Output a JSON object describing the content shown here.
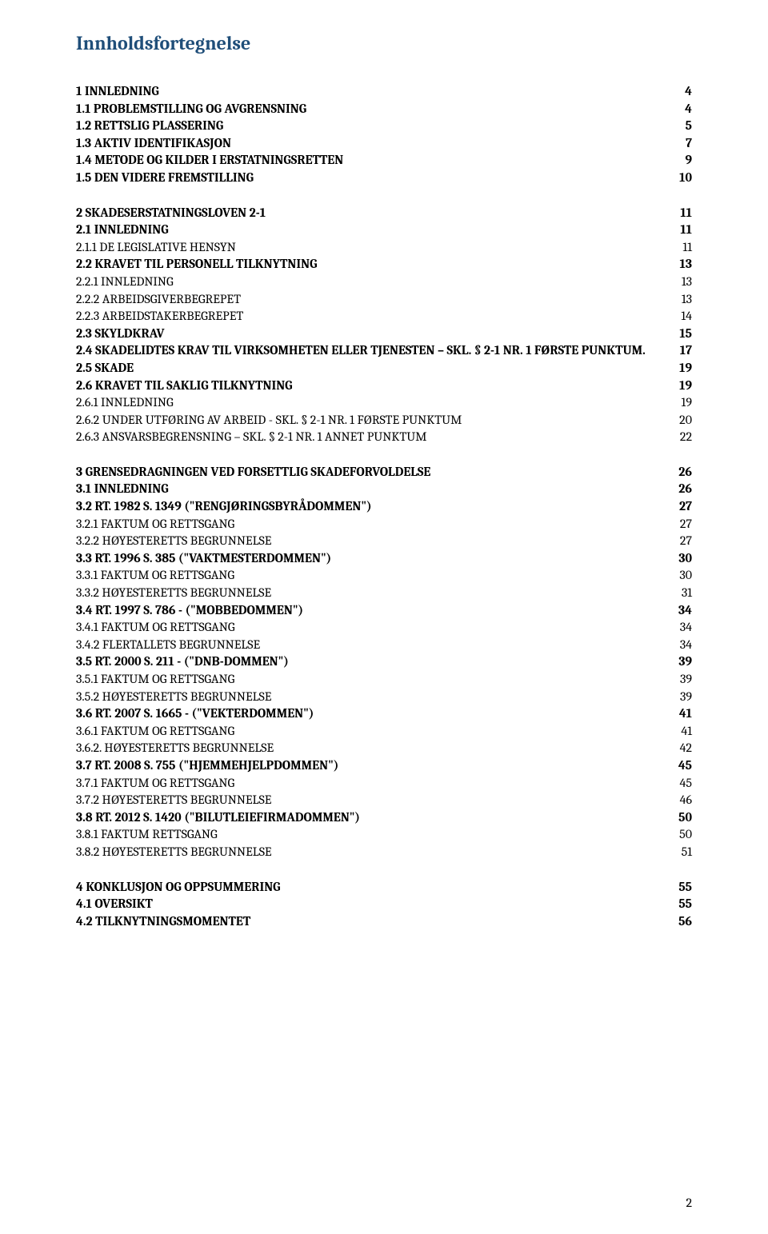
{
  "title": {
    "text": "Innholdsfortegnelse",
    "color": "#1f4e79",
    "fontsize": 24
  },
  "page_number": "2",
  "spacing": {
    "group_gap": 22,
    "line_fontsize": 16
  },
  "entries": [
    {
      "label": "1 INNLEDNING",
      "page": "4",
      "bold": true,
      "gap_before": 0
    },
    {
      "label": "1.1 PROBLEMSTILLING OG AVGRENSNING",
      "page": "4",
      "bold": true,
      "sc": true,
      "gap_before": 0
    },
    {
      "label": "1.2 RETTSLIG PLASSERING",
      "page": "5",
      "bold": true,
      "sc": true,
      "gap_before": 0
    },
    {
      "label": "1.3 AKTIV IDENTIFIKASJON",
      "page": "7",
      "bold": true,
      "sc": true,
      "gap_before": 0
    },
    {
      "label": "1.4 METODE OG KILDER I ERSTATNINGSRETTEN",
      "page": "9",
      "bold": true,
      "sc": true,
      "gap_before": 0
    },
    {
      "label": "1.5 DEN VIDERE FREMSTILLING",
      "page": "10",
      "bold": true,
      "sc": true,
      "gap_before": 0
    },
    {
      "label": "2 SKADESERSTATNINGSLOVEN 2-1",
      "page": "11",
      "bold": true,
      "gap_before": 22
    },
    {
      "label": "2.1 INNLEDNING",
      "page": "11",
      "bold": true,
      "sc": true,
      "gap_before": 0
    },
    {
      "label": "2.1.1 DE LEGISLATIVE HENSYN",
      "page": "11",
      "bold": false,
      "sc": true,
      "gap_before": 0
    },
    {
      "label": "2.2 KRAVET TIL PERSONELL TILKNYTNING",
      "page": "13",
      "bold": true,
      "sc": true,
      "gap_before": 0
    },
    {
      "label": "2.2.1 INNLEDNING",
      "page": "13",
      "bold": false,
      "sc": true,
      "gap_before": 0
    },
    {
      "label": "2.2.2 ARBEIDSGIVERBEGREPET",
      "page": "13",
      "bold": false,
      "sc": true,
      "gap_before": 0
    },
    {
      "label": "2.2.3 ARBEIDSTAKERBEGREPET",
      "page": "14",
      "bold": false,
      "sc": true,
      "gap_before": 0
    },
    {
      "label": "2.3 SKYLDKRAV",
      "page": "15",
      "bold": true,
      "sc": true,
      "gap_before": 0
    },
    {
      "label": "2.4 SKADELIDTES KRAV TIL VIRKSOMHETEN ELLER TJENESTEN – SKL. § 2-1 NR. 1 FØRSTE PUNKTUM.",
      "page": "17",
      "bold": true,
      "sc": true,
      "gap_before": 0
    },
    {
      "label": "2.5 SKADE",
      "page": "19",
      "bold": true,
      "sc": true,
      "gap_before": 0
    },
    {
      "label": "2.6 KRAVET TIL SAKLIG TILKNYTNING",
      "page": "19",
      "bold": true,
      "sc": true,
      "gap_before": 0
    },
    {
      "label": "2.6.1 INNLEDNING",
      "page": "19",
      "bold": false,
      "sc": true,
      "gap_before": 0
    },
    {
      "label": "2.6.2 UNDER UTFØRING AV ARBEID - SKL. § 2-1 NR. 1 FØRSTE PUNKTUM",
      "page": "20",
      "bold": false,
      "sc": true,
      "gap_before": 0
    },
    {
      "label": "2.6.3 ANSVARSBEGRENSNING – SKL. § 2-1 NR. 1 ANNET PUNKTUM",
      "page": "22",
      "bold": false,
      "sc": true,
      "gap_before": 0
    },
    {
      "label": "3 GRENSEDRAGNINGEN VED FORSETTLIG SKADEFORVOLDELSE",
      "page": "26",
      "bold": true,
      "gap_before": 22
    },
    {
      "label": "3.1 INNLEDNING",
      "page": "26",
      "bold": true,
      "sc": true,
      "gap_before": 0
    },
    {
      "label": "3.2 RT. 1982 S. 1349 (\"RENGJØRINGSBYRÅDOMMEN\")",
      "page": "27",
      "bold": true,
      "sc": true,
      "gap_before": 0
    },
    {
      "label": "3.2.1 FAKTUM OG RETTSGANG",
      "page": "27",
      "bold": false,
      "sc": true,
      "gap_before": 0
    },
    {
      "label": "3.2.2 HØYESTERETTS BEGRUNNELSE",
      "page": "27",
      "bold": false,
      "sc": true,
      "gap_before": 0
    },
    {
      "label": "3.3 RT. 1996 S. 385 (\"VAKTMESTERDOMMEN\")",
      "page": "30",
      "bold": true,
      "sc": true,
      "gap_before": 0
    },
    {
      "label": "3.3.1 FAKTUM OG RETTSGANG",
      "page": "30",
      "bold": false,
      "sc": true,
      "gap_before": 0
    },
    {
      "label": "3.3.2 HØYESTERETTS BEGRUNNELSE",
      "page": "31",
      "bold": false,
      "sc": true,
      "gap_before": 0
    },
    {
      "label": "3.4 RT. 1997 S. 786 - (\"MOBBEDOMMEN\")",
      "page": "34",
      "bold": true,
      "sc": true,
      "gap_before": 0
    },
    {
      "label": "3.4.1 FAKTUM OG RETTSGANG",
      "page": "34",
      "bold": false,
      "sc": true,
      "gap_before": 0
    },
    {
      "label": "3.4.2 FLERTALLETS BEGRUNNELSE",
      "page": "34",
      "bold": false,
      "sc": true,
      "gap_before": 0
    },
    {
      "label": "3.5 RT. 2000 S. 211 - (\"DNB-DOMMEN\")",
      "page": "39",
      "bold": true,
      "sc": true,
      "gap_before": 0
    },
    {
      "label": "3.5.1 FAKTUM OG RETTSGANG",
      "page": "39",
      "bold": false,
      "sc": true,
      "gap_before": 0
    },
    {
      "label": "3.5.2 HØYESTERETTS BEGRUNNELSE",
      "page": "39",
      "bold": false,
      "sc": true,
      "gap_before": 0
    },
    {
      "label": "3.6 RT. 2007 S. 1665 - (\"VEKTERDOMMEN\")",
      "page": "41",
      "bold": true,
      "sc": true,
      "gap_before": 0
    },
    {
      "label": "3.6.1 FAKTUM OG RETTSGANG",
      "page": "41",
      "bold": false,
      "sc": true,
      "gap_before": 0
    },
    {
      "label": "3.6.2. HØYESTERETTS BEGRUNNELSE",
      "page": "42",
      "bold": false,
      "sc": true,
      "gap_before": 0
    },
    {
      "label": "3.7 RT. 2008 S. 755 (\"HJEMMEHJELPDOMMEN\")",
      "page": "45",
      "bold": true,
      "sc": true,
      "gap_before": 0
    },
    {
      "label": "3.7.1 FAKTUM OG RETTSGANG",
      "page": "45",
      "bold": false,
      "sc": true,
      "gap_before": 0
    },
    {
      "label": "3.7.2 HØYESTERETTS BEGRUNNELSE",
      "page": "46",
      "bold": false,
      "sc": true,
      "gap_before": 0
    },
    {
      "label": "3.8 RT. 2012 S. 1420 (\"BILUTLEIEFIRMADOMMEN\")",
      "page": "50",
      "bold": true,
      "sc": true,
      "gap_before": 0
    },
    {
      "label": "3.8.1 FAKTUM RETTSGANG",
      "page": "50",
      "bold": false,
      "sc": true,
      "gap_before": 0
    },
    {
      "label": "3.8.2 HØYESTERETTS BEGRUNNELSE",
      "page": "51",
      "bold": false,
      "sc": true,
      "gap_before": 0
    },
    {
      "label": "4 KONKLUSJON OG OPPSUMMERING",
      "page": "55",
      "bold": true,
      "gap_before": 22
    },
    {
      "label": "4.1 OVERSIKT",
      "page": "55",
      "bold": true,
      "sc": true,
      "gap_before": 0
    },
    {
      "label": "4.2 TILKNYTNINGSMOMENTET",
      "page": "56",
      "bold": true,
      "sc": true,
      "gap_before": 0
    }
  ]
}
